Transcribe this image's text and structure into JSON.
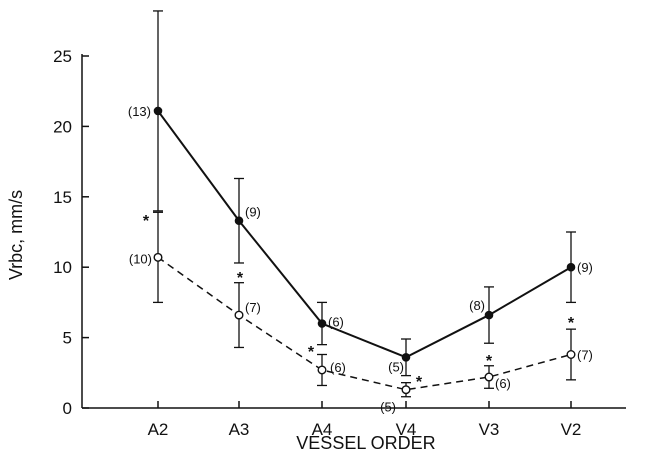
{
  "chart_data": {
    "type": "line",
    "title": "",
    "xlabel": "VESSEL ORDER",
    "ylabel": "Vrbc, mm/s",
    "categories": [
      "A2",
      "A3",
      "A4",
      "V4",
      "V3",
      "V2"
    ],
    "ylim": [
      0,
      25
    ],
    "yticks": [
      0,
      5,
      10,
      15,
      20,
      25
    ],
    "grid": false,
    "legend": "none",
    "series": [
      {
        "style": "solid line, filled circles",
        "color": "#111111",
        "values": [
          21.1,
          13.3,
          6.0,
          3.6,
          6.6,
          10.0
        ],
        "error": [
          7.1,
          3.0,
          1.5,
          1.3,
          2.0,
          2.5
        ],
        "n_labels": [
          "(13)",
          "(9)",
          "(6)",
          "(5)",
          "(8)",
          "(9)"
        ]
      },
      {
        "style": "dashed line, open circles",
        "color": "#111111",
        "values": [
          10.7,
          6.6,
          2.7,
          1.3,
          2.2,
          3.8
        ],
        "error": [
          3.2,
          2.3,
          1.1,
          0.5,
          0.8,
          1.8
        ],
        "n_labels": [
          "(10)",
          "(7)",
          "(6)",
          "(5)",
          "(6)",
          "(7)"
        ]
      }
    ],
    "significance_marker": "*"
  }
}
